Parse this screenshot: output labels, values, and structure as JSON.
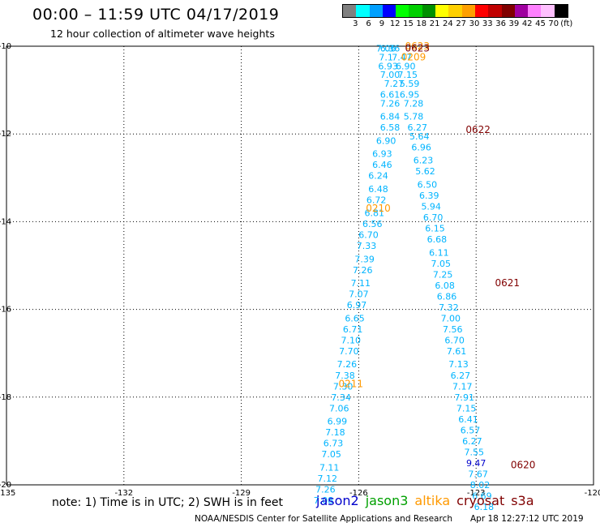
{
  "header": {
    "title": "00:00 – 11:59 UTC 04/17/2019",
    "subtitle": "12 hour collection of altimeter wave heights"
  },
  "legend": {
    "colors": [
      "#808080",
      "#00ffff",
      "#00a0ff",
      "#0000ff",
      "#00ff00",
      "#00d000",
      "#009000",
      "#ffff00",
      "#ffd000",
      "#ffa000",
      "#ff0000",
      "#c00000",
      "#800000",
      "#a000a0",
      "#ff80ff",
      "#ffc0ff",
      "#000000"
    ],
    "ticks": [
      "3",
      "6",
      "9",
      "12",
      "15",
      "18",
      "21",
      "24",
      "27",
      "30",
      "33",
      "36",
      "39",
      "42",
      "45",
      "70"
    ],
    "unit": "(ft)"
  },
  "chart_data": {
    "type": "scatter",
    "title": "12 hour collection of altimeter wave heights",
    "xlim": [
      -135,
      -120
    ],
    "ylim": [
      -20,
      -10
    ],
    "x_ticks": [
      "-135",
      "-132",
      "-129",
      "-126",
      "-123",
      "-120"
    ],
    "y_ticks": [
      "-10",
      "-12",
      "-14",
      "-16",
      "-18",
      "-20"
    ],
    "grid": true,
    "track_color": "#00b4ff",
    "pass_color_altika": "#ff9900",
    "pass_color_cryosat": "#800000",
    "pass_color_jason2": "#0000cc",
    "track_left": [
      {
        "x": -125.3,
        "y": -10.05,
        "label": "7.06"
      },
      {
        "x": -125.2,
        "y": -10.05,
        "label": "6.36"
      },
      {
        "x": -125.3,
        "y": -10.25,
        "label": "7.1"
      },
      {
        "x": -124.9,
        "y": -10.25,
        "label": "7.47"
      },
      {
        "x": -125.25,
        "y": -10.45,
        "label": "6.93"
      },
      {
        "x": -124.8,
        "y": -10.45,
        "label": "6.90"
      },
      {
        "x": -125.2,
        "y": -10.65,
        "label": "7.00"
      },
      {
        "x": -124.75,
        "y": -10.65,
        "label": "7.15"
      },
      {
        "x": -125.1,
        "y": -10.85,
        "label": "7.27"
      },
      {
        "x": -124.7,
        "y": -10.85,
        "label": "5.59"
      },
      {
        "x": -125.2,
        "y": -11.1,
        "label": "6.61"
      },
      {
        "x": -124.7,
        "y": -11.1,
        "label": "6.95"
      },
      {
        "x": -125.2,
        "y": -11.3,
        "label": "7.26"
      },
      {
        "x": -124.6,
        "y": -11.3,
        "label": "7.28"
      },
      {
        "x": -125.2,
        "y": -11.6,
        "label": "6.84"
      },
      {
        "x": -124.6,
        "y": -11.6,
        "label": "5.78"
      },
      {
        "x": -125.2,
        "y": -11.85,
        "label": "6.58"
      },
      {
        "x": -124.5,
        "y": -11.85,
        "label": "6.27"
      },
      {
        "x": -125.3,
        "y": -12.15,
        "label": "6.90"
      },
      {
        "x": -124.45,
        "y": -12.05,
        "label": "5.64"
      },
      {
        "x": -125.4,
        "y": -12.45,
        "label": "6.93"
      },
      {
        "x": -124.4,
        "y": -12.3,
        "label": "6.96"
      },
      {
        "x": -125.4,
        "y": -12.7,
        "label": "6.46"
      },
      {
        "x": -124.35,
        "y": -12.6,
        "label": "6.23"
      },
      {
        "x": -125.5,
        "y": -12.95,
        "label": "6.24"
      },
      {
        "x": -124.3,
        "y": -12.85,
        "label": "5.62"
      },
      {
        "x": -125.5,
        "y": -13.25,
        "label": "6.48"
      },
      {
        "x": -124.25,
        "y": -13.15,
        "label": "6.50"
      },
      {
        "x": -125.55,
        "y": -13.5,
        "label": "6.72"
      },
      {
        "x": -124.2,
        "y": -13.4,
        "label": "6.39"
      },
      {
        "x": -125.6,
        "y": -13.8,
        "label": "6.81"
      },
      {
        "x": -124.15,
        "y": -13.65,
        "label": "5.94"
      },
      {
        "x": -125.65,
        "y": -14.05,
        "label": "6.56"
      },
      {
        "x": -124.1,
        "y": -13.9,
        "label": "6.70"
      },
      {
        "x": -125.75,
        "y": -14.3,
        "label": "6.70"
      },
      {
        "x": -124.05,
        "y": -14.15,
        "label": "6.15"
      },
      {
        "x": -125.8,
        "y": -14.55,
        "label": "7.33"
      },
      {
        "x": -124.0,
        "y": -14.4,
        "label": "6.68"
      },
      {
        "x": -125.85,
        "y": -14.85,
        "label": "7.39"
      },
      {
        "x": -123.95,
        "y": -14.7,
        "label": "6.11"
      },
      {
        "x": -125.9,
        "y": -15.1,
        "label": "7.26"
      },
      {
        "x": -123.9,
        "y": -14.95,
        "label": "7.05"
      },
      {
        "x": -125.95,
        "y": -15.4,
        "label": "7.11"
      },
      {
        "x": -123.85,
        "y": -15.2,
        "label": "7.25"
      },
      {
        "x": -126.0,
        "y": -15.65,
        "label": "7.07"
      },
      {
        "x": -123.8,
        "y": -15.45,
        "label": "6.08"
      },
      {
        "x": -126.05,
        "y": -15.9,
        "label": "6.97"
      },
      {
        "x": -123.75,
        "y": -15.7,
        "label": "6.86"
      },
      {
        "x": -126.1,
        "y": -16.2,
        "label": "6.65"
      },
      {
        "x": -123.7,
        "y": -15.95,
        "label": "7.32"
      },
      {
        "x": -126.15,
        "y": -16.45,
        "label": "6.71"
      },
      {
        "x": -123.65,
        "y": -16.2,
        "label": "7.00"
      },
      {
        "x": -126.2,
        "y": -16.7,
        "label": "7.10"
      },
      {
        "x": -123.6,
        "y": -16.45,
        "label": "7.56"
      },
      {
        "x": -126.25,
        "y": -16.95,
        "label": "7.70"
      },
      {
        "x": -123.55,
        "y": -16.7,
        "label": "6.70"
      },
      {
        "x": -126.3,
        "y": -17.25,
        "label": "7.26"
      },
      {
        "x": -123.5,
        "y": -16.95,
        "label": "7.61"
      },
      {
        "x": -126.35,
        "y": -17.5,
        "label": "7.38"
      },
      {
        "x": -123.45,
        "y": -17.25,
        "label": "7.13"
      },
      {
        "x": -126.4,
        "y": -17.75,
        "label": "7.30"
      },
      {
        "x": -123.4,
        "y": -17.5,
        "label": "6.27"
      },
      {
        "x": -126.45,
        "y": -18.0,
        "label": "7.34"
      },
      {
        "x": -123.35,
        "y": -17.75,
        "label": "7.17"
      },
      {
        "x": -126.5,
        "y": -18.25,
        "label": "7.06"
      },
      {
        "x": -123.3,
        "y": -18.0,
        "label": "7.91"
      },
      {
        "x": -126.55,
        "y": -18.55,
        "label": "6.99"
      },
      {
        "x": -123.25,
        "y": -18.25,
        "label": "7.15"
      },
      {
        "x": -126.6,
        "y": -18.8,
        "label": "7.18"
      },
      {
        "x": -123.2,
        "y": -18.5,
        "label": "6.41"
      },
      {
        "x": -126.65,
        "y": -19.05,
        "label": "6.73"
      },
      {
        "x": -123.15,
        "y": -18.75,
        "label": "6.57"
      },
      {
        "x": -126.7,
        "y": -19.3,
        "label": "7.05"
      },
      {
        "x": -123.1,
        "y": -19.0,
        "label": "6.27"
      },
      {
        "x": -126.75,
        "y": -19.6,
        "label": "7.11"
      },
      {
        "x": -123.05,
        "y": -19.25,
        "label": "7.55"
      },
      {
        "x": -126.8,
        "y": -19.85,
        "label": "7.12"
      },
      {
        "x": -122.95,
        "y": -19.75,
        "label": "7.67"
      },
      {
        "x": -126.85,
        "y": -20.1,
        "label": "7.26"
      },
      {
        "x": -122.9,
        "y": -20.0,
        "label": "8.02"
      },
      {
        "x": -126.9,
        "y": -20.35,
        "label": "7.08"
      },
      {
        "x": -122.85,
        "y": -20.25,
        "label": "6.69"
      },
      {
        "x": -122.8,
        "y": -20.5,
        "label": "6.18"
      }
    ],
    "jason2_points": [
      {
        "x": -123.0,
        "y": -19.5,
        "label": "9.47"
      }
    ],
    "altika_labels": [
      {
        "x": -124.5,
        "y": -10.0,
        "label": "0623"
      },
      {
        "x": -124.6,
        "y": -10.25,
        "label": "0209"
      },
      {
        "x": -125.5,
        "y": -13.7,
        "label": "0210"
      },
      {
        "x": -126.2,
        "y": -17.7,
        "label": "0211"
      }
    ],
    "cryosat_labels": [
      {
        "x": -124.5,
        "y": -10.05,
        "label": "0623"
      },
      {
        "x": -122.95,
        "y": -11.9,
        "label": "0622"
      },
      {
        "x": -122.2,
        "y": -15.4,
        "label": "0621"
      },
      {
        "x": -121.8,
        "y": -19.55,
        "label": "0620"
      }
    ]
  },
  "footer": {
    "note": "note: 1) Time is in UTC; 2) SWH is in feet",
    "satellites": [
      {
        "name": "jason2",
        "color": "#0000cc"
      },
      {
        "name": "jason3",
        "color": "#00a000"
      },
      {
        "name": "altika",
        "color": "#ff9900"
      },
      {
        "name": "cryosat",
        "color": "#800000"
      },
      {
        "name": "s3a",
        "color": "#800000"
      }
    ],
    "credit": "NOAA/NESDIS Center for Satellite Applications and Research",
    "timestamp": "Apr 18 12:27:12 UTC 2019"
  }
}
